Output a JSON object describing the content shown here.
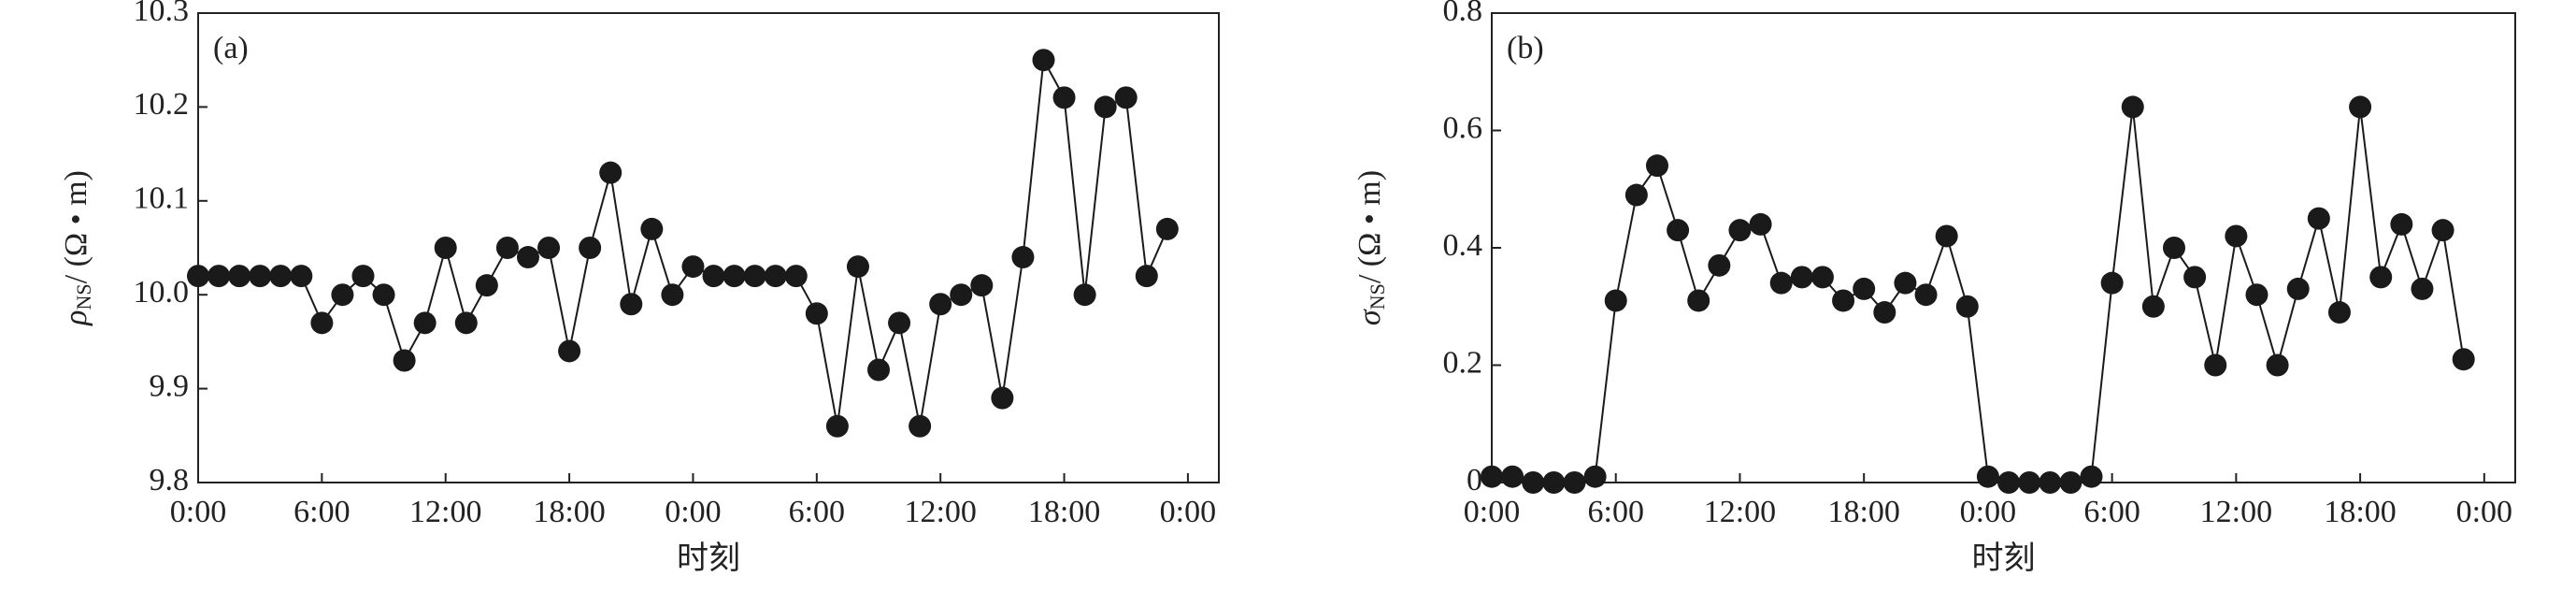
{
  "chart_data": [
    {
      "type": "line",
      "panel_label": "(a)",
      "xlabel": "时刻",
      "ylabel": {
        "symbol": "ρ",
        "subscript": "NS",
        "unit": "/ (Ω • m)"
      },
      "x": [
        0,
        1,
        2,
        3,
        4,
        5,
        6,
        7,
        8,
        9,
        10,
        11,
        12,
        13,
        14,
        15,
        16,
        17,
        18,
        19,
        20,
        21,
        22,
        23,
        24,
        25,
        26,
        27,
        28,
        29,
        30,
        31,
        32,
        33,
        34,
        35,
        36,
        37,
        38,
        39,
        40,
        41,
        42,
        43,
        44,
        45,
        46,
        47
      ],
      "series": [
        {
          "color": "#1a1a1a",
          "values": [
            10.02,
            10.02,
            10.02,
            10.02,
            10.02,
            10.02,
            9.97,
            10.0,
            10.02,
            10.0,
            9.93,
            9.97,
            10.05,
            9.97,
            10.01,
            10.05,
            10.04,
            10.05,
            9.94,
            10.05,
            10.13,
            9.99,
            10.07,
            10.0,
            10.03,
            10.02,
            10.02,
            10.02,
            10.02,
            10.02,
            9.98,
            9.86,
            10.03,
            9.92,
            9.97,
            9.86,
            9.99,
            10.0,
            10.01,
            9.89,
            10.04,
            10.25,
            10.21,
            10.0,
            10.2,
            10.21,
            10.02,
            10.07
          ]
        }
      ],
      "xlim": [
        0,
        49.5
      ],
      "xticks": [
        {
          "value": 0,
          "label": "0:00"
        },
        {
          "value": 6,
          "label": "6:00"
        },
        {
          "value": 12,
          "label": "12:00"
        },
        {
          "value": 18,
          "label": "18:00"
        },
        {
          "value": 24,
          "label": "0:00"
        },
        {
          "value": 30,
          "label": "6:00"
        },
        {
          "value": 36,
          "label": "12:00"
        },
        {
          "value": 42,
          "label": "18:00"
        },
        {
          "value": 48,
          "label": "0:00"
        }
      ],
      "ylim": [
        9.8,
        10.3
      ],
      "yticks": [
        9.8,
        9.9,
        {
          "value": 10,
          "label": "10.0"
        },
        10.1,
        10.2,
        10.3
      ]
    },
    {
      "type": "line",
      "panel_label": "(b)",
      "xlabel": "时刻",
      "ylabel": {
        "symbol": "σ",
        "subscript": "NS",
        "unit": "/ (Ω • m)"
      },
      "x": [
        0,
        1,
        2,
        3,
        4,
        5,
        6,
        7,
        8,
        9,
        10,
        11,
        12,
        13,
        14,
        15,
        16,
        17,
        18,
        19,
        20,
        21,
        22,
        23,
        24,
        25,
        26,
        27,
        28,
        29,
        30,
        31,
        32,
        33,
        34,
        35,
        36,
        37,
        38,
        39,
        40,
        41,
        42,
        43,
        44,
        45,
        46,
        47
      ],
      "series": [
        {
          "color": "#1a1a1a",
          "values": [
            0.01,
            0.01,
            0,
            0,
            0,
            0.01,
            0.31,
            0.49,
            0.54,
            0.43,
            0.31,
            0.37,
            0.43,
            0.44,
            0.34,
            0.35,
            0.35,
            0.31,
            0.33,
            0.29,
            0.34,
            0.32,
            0.42,
            0.3,
            0.01,
            0,
            0,
            0,
            0,
            0.01,
            0.34,
            0.64,
            0.3,
            0.4,
            0.35,
            0.2,
            0.42,
            0.32,
            0.2,
            0.33,
            0.45,
            0.29,
            0.64,
            0.35,
            0.44,
            0.33,
            0.43,
            0.21
          ]
        }
      ],
      "xlim": [
        0,
        49.5
      ],
      "xticks": [
        {
          "value": 0,
          "label": "0:00"
        },
        {
          "value": 6,
          "label": "6:00"
        },
        {
          "value": 12,
          "label": "12:00"
        },
        {
          "value": 18,
          "label": "18:00"
        },
        {
          "value": 24,
          "label": "0:00"
        },
        {
          "value": 30,
          "label": "6:00"
        },
        {
          "value": 36,
          "label": "12:00"
        },
        {
          "value": 42,
          "label": "18:00"
        },
        {
          "value": 48,
          "label": "0:00"
        }
      ],
      "ylim": [
        0,
        0.8
      ],
      "yticks": [
        0,
        0.2,
        0.4,
        0.6,
        0.8
      ]
    }
  ]
}
